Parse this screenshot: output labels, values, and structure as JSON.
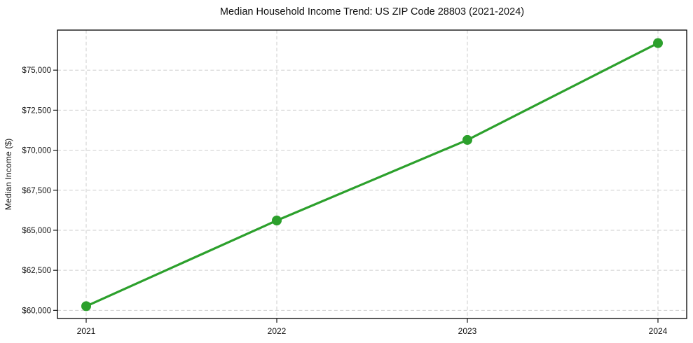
{
  "chart_data": {
    "type": "line",
    "title": "Median Household Income Trend: US ZIP Code 28803 (2021-2024)",
    "xlabel": "",
    "ylabel": "Median Income ($)",
    "x": [
      2021,
      2022,
      2023,
      2024
    ],
    "xtick_labels": [
      "2021",
      "2022",
      "2023",
      "2024"
    ],
    "series": [
      {
        "name": "Median Household Income",
        "values": [
          60260,
          65610,
          70640,
          76690
        ],
        "color": "#2ca02c",
        "marker": "circle"
      }
    ],
    "yticks": [
      60000,
      62500,
      65000,
      67500,
      70000,
      72500,
      75000
    ],
    "ytick_labels": [
      "$60,000",
      "$62,500",
      "$65,000",
      "$67,500",
      "$70,000",
      "$72,500",
      "$75,000"
    ],
    "ylim": [
      59490,
      77500
    ],
    "grid": "dashed both",
    "legend_position": "none",
    "colors": {
      "line": "#2ca02c",
      "grid": "#cdcdcd",
      "spine": "#000000",
      "background": "#ffffff",
      "text": "#111111"
    }
  }
}
